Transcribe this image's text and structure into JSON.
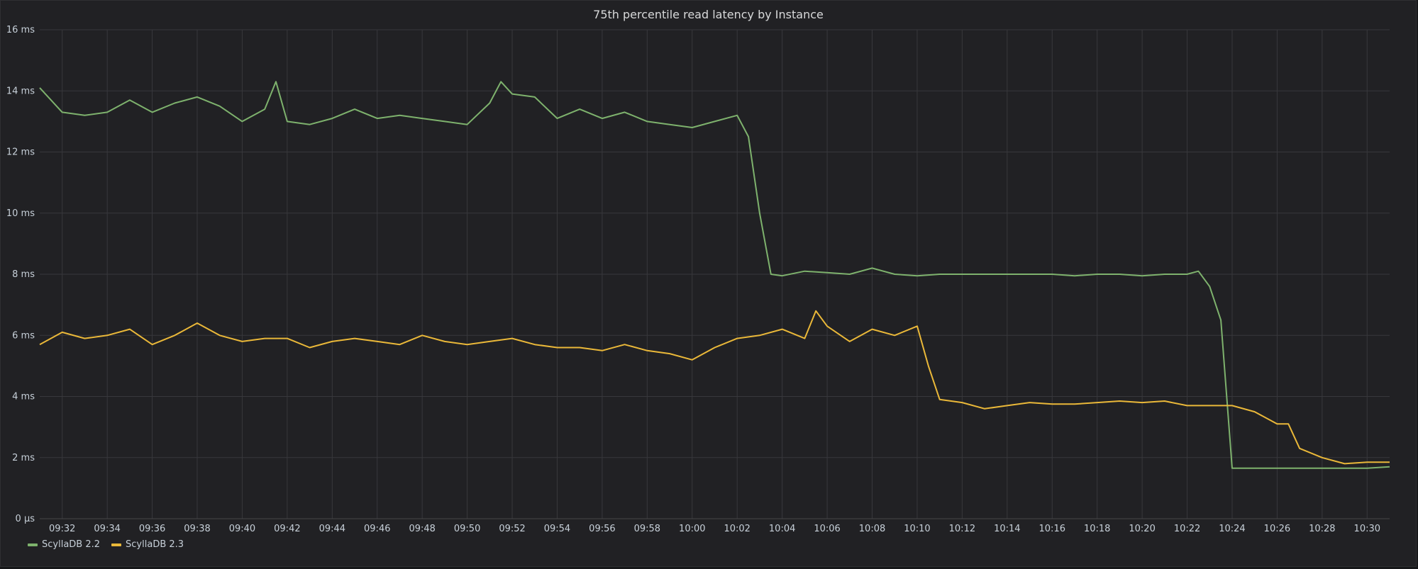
{
  "panel": {
    "title": "75th percentile read latency by Instance"
  },
  "chart_data": {
    "type": "line",
    "title": "75th percentile read latency by Instance",
    "xlabel": "",
    "ylabel": "",
    "grid": true,
    "legend_placement": "bottom-left",
    "ylim": [
      0,
      16
    ],
    "xlim": [
      "09:31",
      "10:31"
    ],
    "y_ticks": [
      "0 µs",
      "2 ms",
      "4 ms",
      "6 ms",
      "8 ms",
      "10 ms",
      "12 ms",
      "14 ms",
      "16 ms"
    ],
    "x_ticks": [
      "09:32",
      "09:34",
      "09:36",
      "09:38",
      "09:40",
      "09:42",
      "09:44",
      "09:46",
      "09:48",
      "09:50",
      "09:52",
      "09:54",
      "09:56",
      "09:58",
      "10:00",
      "10:02",
      "10:04",
      "10:06",
      "10:08",
      "10:10",
      "10:12",
      "10:14",
      "10:16",
      "10:18",
      "10:20",
      "10:22",
      "10:24",
      "10:26",
      "10:28",
      "10:30"
    ],
    "series": [
      {
        "name": "ScyllaDB 2.2",
        "color": "#7eb26d",
        "x": [
          "09:31",
          "09:32",
          "09:33",
          "09:34",
          "09:35",
          "09:36",
          "09:37",
          "09:38",
          "09:39",
          "09:40",
          "09:41",
          "09:41:30",
          "09:42",
          "09:43",
          "09:44",
          "09:45",
          "09:46",
          "09:47",
          "09:48",
          "09:49",
          "09:50",
          "09:51",
          "09:51:30",
          "09:52",
          "09:53",
          "09:54",
          "09:55",
          "09:56",
          "09:57",
          "09:58",
          "09:59",
          "10:00",
          "10:01",
          "10:02",
          "10:02:30",
          "10:03",
          "10:03:30",
          "10:04",
          "10:05",
          "10:06",
          "10:07",
          "10:08",
          "10:09",
          "10:10",
          "10:11",
          "10:12",
          "10:13",
          "10:14",
          "10:15",
          "10:16",
          "10:17",
          "10:18",
          "10:19",
          "10:20",
          "10:21",
          "10:22",
          "10:22:30",
          "10:23",
          "10:23:30",
          "10:24",
          "10:25",
          "10:26",
          "10:27",
          "10:28",
          "10:29",
          "10:30",
          "10:31"
        ],
        "y": [
          14.1,
          13.3,
          13.2,
          13.3,
          13.7,
          13.3,
          13.6,
          13.8,
          13.5,
          13.0,
          13.4,
          14.3,
          13.0,
          12.9,
          13.1,
          13.4,
          13.1,
          13.2,
          13.1,
          13.0,
          12.9,
          13.6,
          14.3,
          13.9,
          13.8,
          13.1,
          13.4,
          13.1,
          13.3,
          13.0,
          12.9,
          12.8,
          13.0,
          13.2,
          12.5,
          10.0,
          8.0,
          7.95,
          8.1,
          8.05,
          8.0,
          8.2,
          8.0,
          7.95,
          8.0,
          8.0,
          8.0,
          8.0,
          8.0,
          8.0,
          7.95,
          8.0,
          8.0,
          7.95,
          8.0,
          8.0,
          8.1,
          7.6,
          6.5,
          1.65,
          1.65,
          1.65,
          1.65,
          1.65,
          1.65,
          1.65,
          1.7
        ]
      },
      {
        "name": "ScyllaDB 2.3",
        "color": "#eab839",
        "x": [
          "09:31",
          "09:32",
          "09:33",
          "09:34",
          "09:35",
          "09:36",
          "09:37",
          "09:38",
          "09:39",
          "09:40",
          "09:41",
          "09:42",
          "09:43",
          "09:44",
          "09:45",
          "09:46",
          "09:47",
          "09:48",
          "09:49",
          "09:50",
          "09:51",
          "09:52",
          "09:53",
          "09:54",
          "09:55",
          "09:56",
          "09:57",
          "09:58",
          "09:59",
          "10:00",
          "10:01",
          "10:02",
          "10:03",
          "10:04",
          "10:05",
          "10:05:30",
          "10:06",
          "10:07",
          "10:08",
          "10:09",
          "10:10",
          "10:10:30",
          "10:11",
          "10:12",
          "10:13",
          "10:14",
          "10:15",
          "10:16",
          "10:17",
          "10:18",
          "10:19",
          "10:20",
          "10:21",
          "10:22",
          "10:23",
          "10:24",
          "10:25",
          "10:26",
          "10:26:30",
          "10:27",
          "10:28",
          "10:29",
          "10:30",
          "10:31"
        ],
        "y": [
          5.7,
          6.1,
          5.9,
          6.0,
          6.2,
          5.7,
          6.0,
          6.4,
          6.0,
          5.8,
          5.9,
          5.9,
          5.6,
          5.8,
          5.9,
          5.8,
          5.7,
          6.0,
          5.8,
          5.7,
          5.8,
          5.9,
          5.7,
          5.6,
          5.6,
          5.5,
          5.7,
          5.5,
          5.4,
          5.2,
          5.6,
          5.9,
          6.0,
          6.2,
          5.9,
          6.8,
          6.3,
          5.8,
          6.2,
          6.0,
          6.3,
          5.0,
          3.9,
          3.8,
          3.6,
          3.7,
          3.8,
          3.75,
          3.75,
          3.8,
          3.85,
          3.8,
          3.85,
          3.7,
          3.7,
          3.7,
          3.5,
          3.1,
          3.1,
          2.3,
          2.0,
          1.8,
          1.85,
          1.85
        ]
      }
    ]
  }
}
